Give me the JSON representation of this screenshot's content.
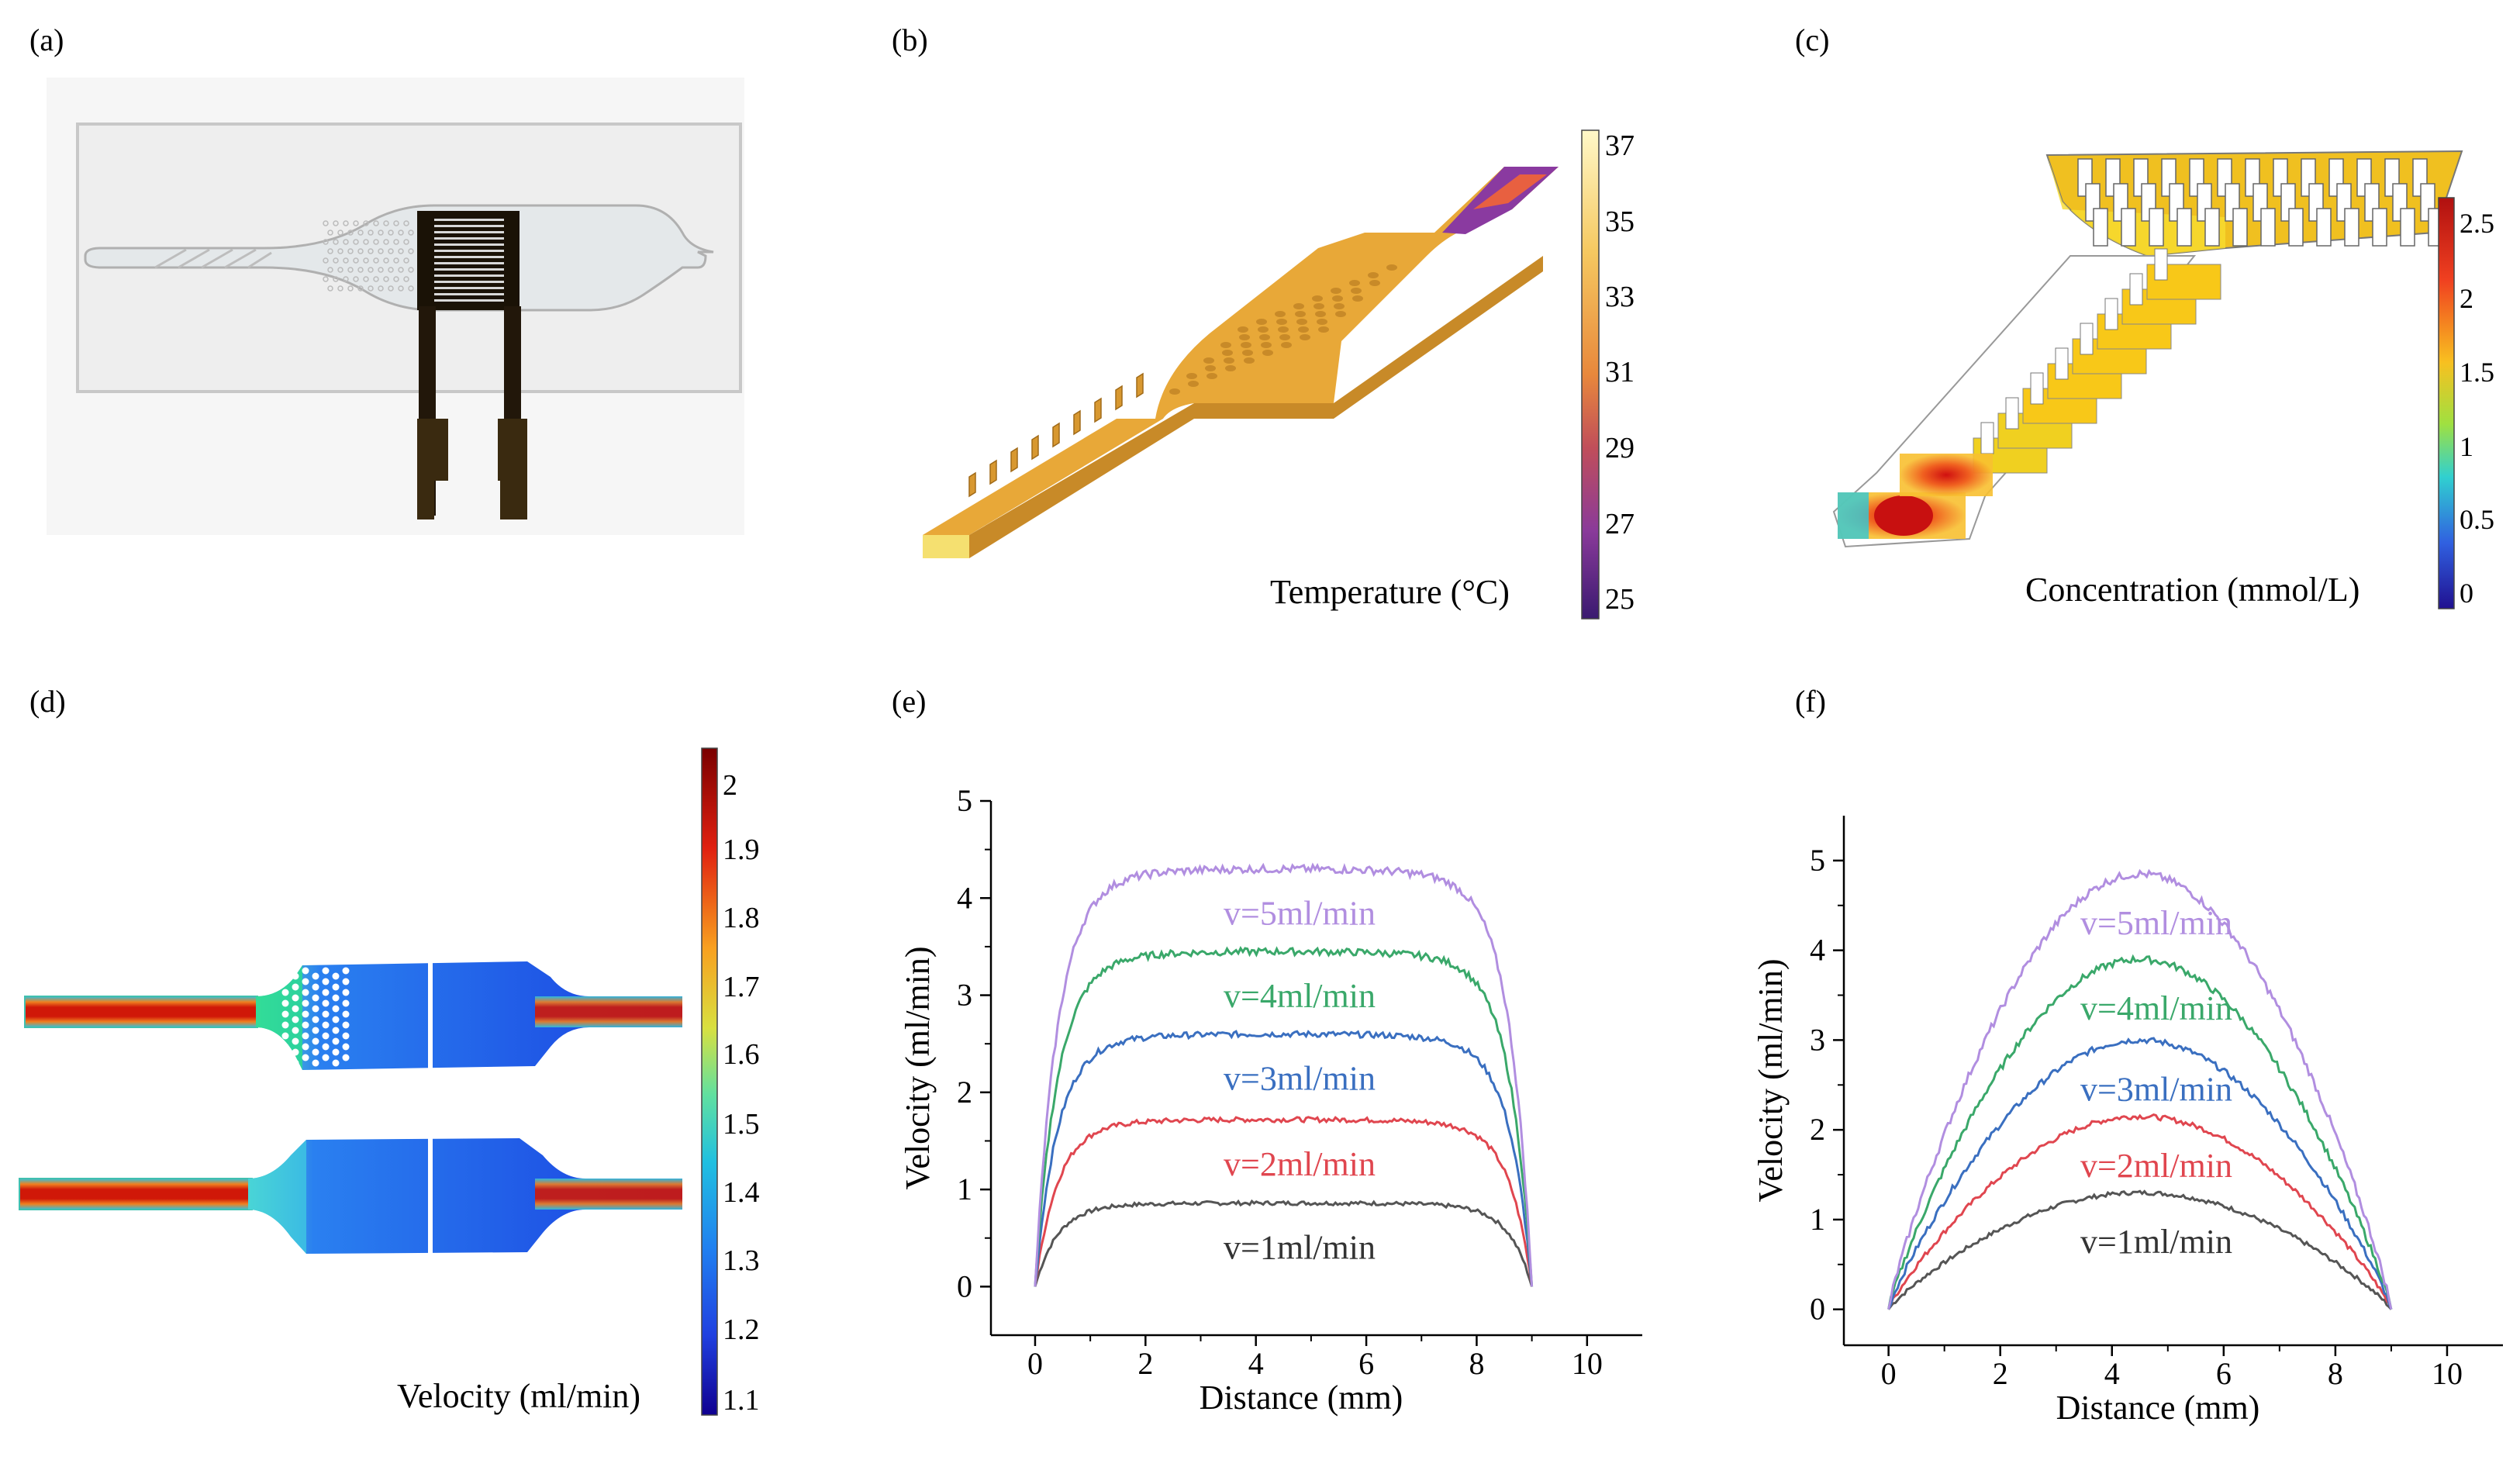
{
  "panel_labels": [
    "(a)",
    "(b)",
    "(c)",
    "(d)",
    "(e)",
    "(f)"
  ],
  "panel_b": {
    "colorbar_title": "Temperature (°C)",
    "colorbar_ticks": [
      "37",
      "35",
      "33",
      "31",
      "29",
      "27",
      "25"
    ],
    "colormap": [
      "#fff8c8",
      "#f5c860",
      "#e8883c",
      "#c04e5a",
      "#8a3a9a",
      "#3a1a70"
    ]
  },
  "panel_c": {
    "colorbar_title": "Concentration (mmol/L)",
    "colorbar_ticks": [
      "2.5",
      "2",
      "1.5",
      "1",
      "0.5",
      "0"
    ],
    "colormap": [
      "#b01010",
      "#f04020",
      "#f8c020",
      "#a0e040",
      "#30d0d0",
      "#3060e0",
      "#201090"
    ]
  },
  "panel_d": {
    "colorbar_title": "Velocity (ml/min)",
    "colorbar_ticks": [
      "2",
      "1.9",
      "1.8",
      "1.7",
      "1.6",
      "1.5",
      "1.4",
      "1.3",
      "1.2",
      "1.1"
    ],
    "colormap": [
      "#7a0000",
      "#e02010",
      "#f8a020",
      "#d8e040",
      "#60e0a0",
      "#20c0e0",
      "#2080f0",
      "#2040e0",
      "#100090"
    ]
  },
  "chart_data": [
    {
      "panel": "(e)",
      "type": "line",
      "xlabel": "Distance (mm)",
      "ylabel": "Velocity (ml/min)",
      "xlim": [
        -0.8,
        11
      ],
      "ylim": [
        -0.5,
        5
      ],
      "xticks": [
        0,
        2,
        4,
        6,
        8,
        10
      ],
      "yticks": [
        0,
        1,
        2,
        3,
        4,
        5
      ],
      "profile": "plug",
      "series": [
        {
          "name": "v=1ml/min",
          "plateau": 0.86,
          "color": "#555555"
        },
        {
          "name": "v=2ml/min",
          "plateau": 1.72,
          "color": "#e0464f"
        },
        {
          "name": "v=3ml/min",
          "plateau": 2.6,
          "color": "#3a6fc0"
        },
        {
          "name": "v=4ml/min",
          "plateau": 3.45,
          "color": "#3aa86a"
        },
        {
          "name": "v=5ml/min",
          "plateau": 4.3,
          "color": "#b18ee0"
        }
      ],
      "x_start": 0,
      "x_end": 9
    },
    {
      "panel": "(f)",
      "type": "line",
      "xlabel": "Distance (mm)",
      "ylabel": "Velocity (ml/min)",
      "xlim": [
        -0.8,
        11
      ],
      "ylim": [
        -0.4,
        5.5
      ],
      "xticks": [
        0,
        2,
        4,
        6,
        8,
        10
      ],
      "yticks": [
        0,
        1,
        2,
        3,
        4,
        5
      ],
      "profile": "parabolic",
      "series": [
        {
          "name": "v=1ml/min",
          "peak": 1.3,
          "color": "#555555"
        },
        {
          "name": "v=2ml/min",
          "peak": 2.15,
          "color": "#e0464f"
        },
        {
          "name": "v=3ml/min",
          "peak": 3.0,
          "color": "#3a6fc0"
        },
        {
          "name": "v=4ml/min",
          "peak": 3.9,
          "color": "#3aa86a"
        },
        {
          "name": "v=5ml/min",
          "peak": 4.85,
          "color": "#b18ee0"
        }
      ],
      "x_start": 0,
      "x_end": 9
    }
  ]
}
